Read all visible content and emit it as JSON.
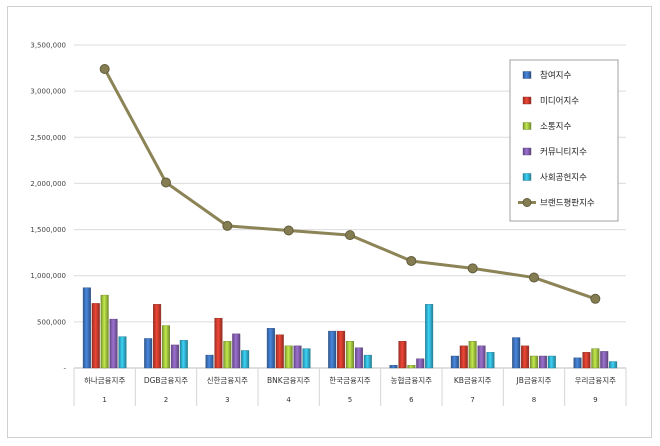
{
  "chart_data": {
    "type": "bar",
    "categories": [
      "하나금융지주",
      "DGB금융지주",
      "신한금융지주",
      "BNK금융지주",
      "한국금융지주",
      "농협금융지주",
      "KB금융지주",
      "JB금융지주",
      "우리금융지주"
    ],
    "category_numbers": [
      "1",
      "2",
      "3",
      "4",
      "5",
      "6",
      "7",
      "8",
      "9"
    ],
    "ylim": [
      0,
      3500000
    ],
    "yticks": [
      0,
      500000,
      1000000,
      1500000,
      2000000,
      2500000,
      3000000,
      3500000
    ],
    "ytick_labels": [
      "-",
      "500,000",
      "1,000,000",
      "1,500,000",
      "2,000,000",
      "2,500,000",
      "3,000,000",
      "3,500,000"
    ],
    "grid": true,
    "legend_position": "top-right",
    "series": [
      {
        "name": "참여지수",
        "color": "#3a6db3",
        "kind": "bar",
        "values": [
          870000,
          320000,
          140000,
          430000,
          400000,
          30000,
          130000,
          330000,
          110000
        ]
      },
      {
        "name": "미디어지수",
        "color": "#c0392b",
        "kind": "bar",
        "values": [
          700000,
          690000,
          540000,
          360000,
          400000,
          290000,
          240000,
          240000,
          170000
        ]
      },
      {
        "name": "소통지수",
        "color": "#9bbb3c",
        "kind": "bar",
        "values": [
          790000,
          460000,
          290000,
          240000,
          290000,
          30000,
          290000,
          130000,
          210000
        ]
      },
      {
        "name": "커뮤니티지수",
        "color": "#7d5aa6",
        "kind": "bar",
        "values": [
          530000,
          250000,
          370000,
          240000,
          220000,
          100000,
          240000,
          130000,
          180000
        ]
      },
      {
        "name": "사회공헌지수",
        "color": "#2fa9c6",
        "kind": "bar",
        "values": [
          340000,
          300000,
          190000,
          210000,
          140000,
          690000,
          170000,
          130000,
          70000
        ]
      },
      {
        "name": "브랜드평판지수",
        "color": "#8c8456",
        "kind": "line",
        "values": [
          3240000,
          2010000,
          1540000,
          1490000,
          1440000,
          1160000,
          1080000,
          980000,
          750000
        ]
      }
    ]
  }
}
